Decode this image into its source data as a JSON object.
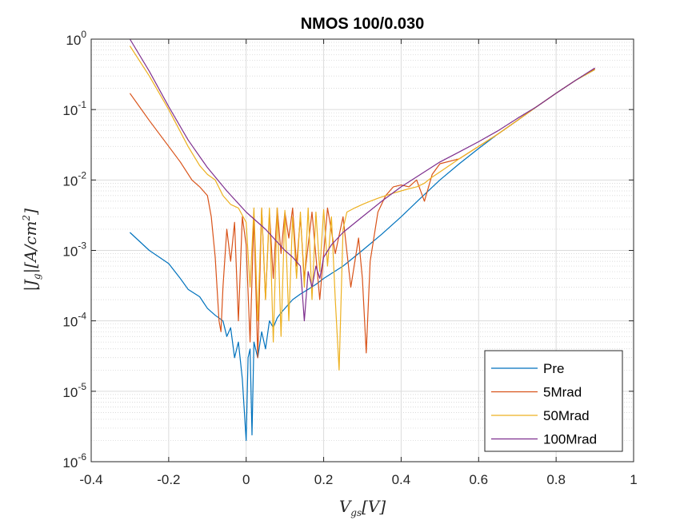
{
  "chart_data": {
    "type": "line",
    "title": "NMOS 100/0.030",
    "xlabel": "V_{gs}[V]",
    "ylabel": "|J_g|[A/cm^2]",
    "xlim": [
      -0.4,
      1.0
    ],
    "ylim": [
      1e-06,
      1.0
    ],
    "yscale": "log",
    "grid": true,
    "minor_grid": true,
    "legend_position": "bottom-right",
    "x_ticks": [
      "-0.4",
      "-0.2",
      "0",
      "0.2",
      "0.4",
      "0.6",
      "0.8",
      "1"
    ],
    "y_ticks": [
      {
        "base": "10",
        "exp": "-6"
      },
      {
        "base": "10",
        "exp": "-5"
      },
      {
        "base": "10",
        "exp": "-4"
      },
      {
        "base": "10",
        "exp": "-3"
      },
      {
        "base": "10",
        "exp": "-2"
      },
      {
        "base": "10",
        "exp": "-1"
      },
      {
        "base": "10",
        "exp": "0"
      }
    ],
    "series": [
      {
        "name": "Pre",
        "color": "#0072BD",
        "x": [
          -0.3,
          -0.25,
          -0.2,
          -0.17,
          -0.15,
          -0.12,
          -0.1,
          -0.08,
          -0.06,
          -0.05,
          -0.04,
          -0.03,
          -0.02,
          -0.01,
          0.0,
          0.005,
          0.01,
          0.015,
          0.02,
          0.03,
          0.04,
          0.05,
          0.06,
          0.07,
          0.08,
          0.09,
          0.1,
          0.12,
          0.14,
          0.16,
          0.18,
          0.2,
          0.25,
          0.3,
          0.35,
          0.4,
          0.45,
          0.5,
          0.55,
          0.6,
          0.65,
          0.7,
          0.75,
          0.8,
          0.85,
          0.9
        ],
        "y": [
          0.0018,
          0.001,
          0.00065,
          0.0004,
          0.00028,
          0.00022,
          0.00015,
          0.00012,
          0.0001,
          6e-05,
          8e-05,
          3e-05,
          5e-05,
          1.5e-05,
          2e-06,
          3e-05,
          4e-05,
          2.4e-06,
          5e-05,
          3e-05,
          7e-05,
          4e-05,
          0.0001,
          8e-05,
          0.00011,
          0.00013,
          0.00015,
          0.0002,
          0.00024,
          0.00028,
          0.00033,
          0.0004,
          0.0006,
          0.001,
          0.0017,
          0.003,
          0.0055,
          0.01,
          0.017,
          0.028,
          0.045,
          0.07,
          0.11,
          0.17,
          0.26,
          0.37
        ]
      },
      {
        "name": "5Mrad",
        "color": "#D95319",
        "x": [
          -0.3,
          -0.25,
          -0.2,
          -0.17,
          -0.14,
          -0.12,
          -0.1,
          -0.09,
          -0.08,
          -0.07,
          -0.065,
          -0.06,
          -0.05,
          -0.04,
          -0.03,
          -0.02,
          -0.01,
          0.0,
          0.01,
          0.02,
          0.03,
          0.04,
          0.05,
          0.06,
          0.07,
          0.08,
          0.09,
          0.1,
          0.11,
          0.12,
          0.13,
          0.14,
          0.15,
          0.17,
          0.19,
          0.21,
          0.23,
          0.25,
          0.27,
          0.29,
          0.3,
          0.31,
          0.32,
          0.34,
          0.36,
          0.38,
          0.4,
          0.42,
          0.44,
          0.46,
          0.48,
          0.5,
          0.55,
          0.6,
          0.65,
          0.7,
          0.75,
          0.8,
          0.85,
          0.9
        ],
        "y": [
          0.17,
          0.07,
          0.03,
          0.018,
          0.01,
          0.008,
          0.006,
          0.003,
          0.0008,
          0.0001,
          7e-05,
          0.0003,
          0.002,
          0.0007,
          0.0025,
          0.0001,
          0.003,
          0.0012,
          5e-05,
          0.003,
          3e-05,
          0.004,
          0.0002,
          0.0035,
          0.0004,
          0.004,
          0.0009,
          0.0035,
          0.0015,
          0.004,
          0.0006,
          0.003,
          0.0004,
          0.0035,
          0.0002,
          0.004,
          0.0009,
          0.003,
          0.0003,
          0.0015,
          0.0004,
          3.5e-05,
          0.0007,
          0.0035,
          0.006,
          0.008,
          0.0085,
          0.008,
          0.01,
          0.005,
          0.012,
          0.017,
          0.02,
          0.03,
          0.045,
          0.07,
          0.11,
          0.17,
          0.26,
          0.38
        ]
      },
      {
        "name": "50Mrad",
        "color": "#EDB120",
        "x": [
          -0.3,
          -0.25,
          -0.2,
          -0.15,
          -0.12,
          -0.1,
          -0.08,
          -0.06,
          -0.04,
          -0.02,
          0.0,
          0.01,
          0.02,
          0.03,
          0.04,
          0.05,
          0.06,
          0.07,
          0.08,
          0.09,
          0.1,
          0.11,
          0.12,
          0.13,
          0.14,
          0.15,
          0.16,
          0.17,
          0.18,
          0.19,
          0.2,
          0.21,
          0.22,
          0.23,
          0.24,
          0.25,
          0.26,
          0.28,
          0.3,
          0.32,
          0.34,
          0.36,
          0.38,
          0.4,
          0.42,
          0.44,
          0.46,
          0.48,
          0.5,
          0.55,
          0.6,
          0.65,
          0.7,
          0.75,
          0.8,
          0.85,
          0.9
        ],
        "y": [
          0.8,
          0.3,
          0.1,
          0.03,
          0.016,
          0.012,
          0.01,
          0.006,
          0.0045,
          0.004,
          0.0025,
          0.0003,
          0.004,
          0.0001,
          0.004,
          0.0002,
          0.004,
          5e-05,
          0.004,
          6e-05,
          0.0037,
          0.0001,
          0.003,
          0.0004,
          0.0035,
          0.0003,
          0.004,
          0.0002,
          0.0035,
          0.0005,
          0.0038,
          0.0006,
          0.003,
          0.0002,
          2e-05,
          0.002,
          0.0035,
          0.004,
          0.0045,
          0.005,
          0.0055,
          0.006,
          0.0065,
          0.007,
          0.0075,
          0.008,
          0.009,
          0.011,
          0.013,
          0.02,
          0.03,
          0.045,
          0.07,
          0.11,
          0.17,
          0.26,
          0.37
        ]
      },
      {
        "name": "100Mrad",
        "color": "#7E2F8E",
        "x": [
          -0.3,
          -0.25,
          -0.2,
          -0.15,
          -0.1,
          -0.05,
          0.0,
          0.05,
          0.1,
          0.12,
          0.14,
          0.15,
          0.16,
          0.17,
          0.18,
          0.19,
          0.2,
          0.22,
          0.25,
          0.3,
          0.35,
          0.4,
          0.45,
          0.5,
          0.55,
          0.6,
          0.65,
          0.7,
          0.75,
          0.8,
          0.85,
          0.9
        ],
        "y": [
          1.0,
          0.35,
          0.11,
          0.037,
          0.015,
          0.007,
          0.0035,
          0.002,
          0.001,
          0.0008,
          0.0006,
          0.0001,
          0.0005,
          0.0003,
          0.0006,
          0.0004,
          0.0008,
          0.0012,
          0.0018,
          0.003,
          0.005,
          0.008,
          0.012,
          0.018,
          0.025,
          0.035,
          0.05,
          0.075,
          0.11,
          0.17,
          0.26,
          0.39
        ]
      }
    ]
  }
}
